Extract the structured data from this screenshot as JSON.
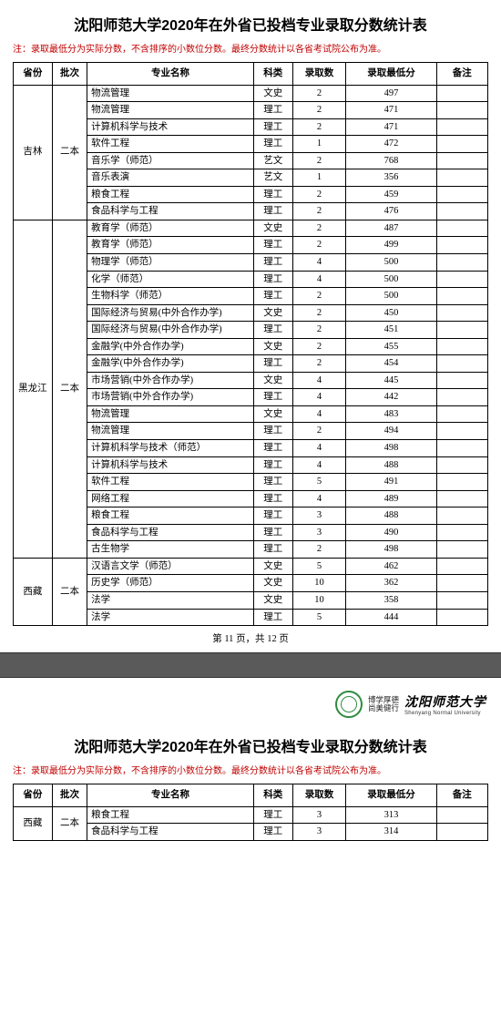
{
  "colors": {
    "note_text": "#c00000",
    "border": "#000000",
    "gap_bg": "#5a5a5a",
    "seal": "#2e8b3f"
  },
  "title": "沈阳师范大学2020年在外省已投档专业录取分数统计表",
  "note": "注：录取最低分为实际分数，不含排序的小数位分数。最终分数统计以各省考试院公布为准。",
  "columns": [
    "省份",
    "批次",
    "专业名称",
    "科类",
    "录取数",
    "录取最低分",
    "备注"
  ],
  "pager": {
    "prefix": "第 ",
    "page": "11",
    "middle": " 页，共 ",
    "total": "12",
    "suffix": " 页"
  },
  "logo": {
    "motto_l1": "博学厚德",
    "motto_l2": "尚美健行",
    "univ_cn": "沈阳师范大学",
    "univ_en": "Shenyang Normal University"
  },
  "page1_groups": [
    {
      "province": "吉林",
      "batch": "二本",
      "rows": [
        {
          "major": "物流管理",
          "subj": "文史",
          "cnt": "2",
          "min": "497",
          "note": ""
        },
        {
          "major": "物流管理",
          "subj": "理工",
          "cnt": "2",
          "min": "471",
          "note": ""
        },
        {
          "major": "计算机科学与技术",
          "subj": "理工",
          "cnt": "2",
          "min": "471",
          "note": ""
        },
        {
          "major": "软件工程",
          "subj": "理工",
          "cnt": "1",
          "min": "472",
          "note": ""
        },
        {
          "major": "音乐学（师范）",
          "subj": "艺文",
          "cnt": "2",
          "min": "768",
          "note": ""
        },
        {
          "major": "音乐表演",
          "subj": "艺文",
          "cnt": "1",
          "min": "356",
          "note": ""
        },
        {
          "major": "粮食工程",
          "subj": "理工",
          "cnt": "2",
          "min": "459",
          "note": ""
        },
        {
          "major": "食品科学与工程",
          "subj": "理工",
          "cnt": "2",
          "min": "476",
          "note": ""
        }
      ]
    },
    {
      "province": "黑龙江",
      "batch": "二本",
      "rows": [
        {
          "major": "教育学（师范）",
          "subj": "文史",
          "cnt": "2",
          "min": "487",
          "note": ""
        },
        {
          "major": "教育学（师范）",
          "subj": "理工",
          "cnt": "2",
          "min": "499",
          "note": ""
        },
        {
          "major": "物理学（师范）",
          "subj": "理工",
          "cnt": "4",
          "min": "500",
          "note": ""
        },
        {
          "major": "化学（师范）",
          "subj": "理工",
          "cnt": "4",
          "min": "500",
          "note": ""
        },
        {
          "major": "生物科学（师范）",
          "subj": "理工",
          "cnt": "2",
          "min": "500",
          "note": ""
        },
        {
          "major": "国际经济与贸易(中外合作办学)",
          "subj": "文史",
          "cnt": "2",
          "min": "450",
          "note": ""
        },
        {
          "major": "国际经济与贸易(中外合作办学)",
          "subj": "理工",
          "cnt": "2",
          "min": "451",
          "note": ""
        },
        {
          "major": "金融学(中外合作办学)",
          "subj": "文史",
          "cnt": "2",
          "min": "455",
          "note": ""
        },
        {
          "major": "金融学(中外合作办学)",
          "subj": "理工",
          "cnt": "2",
          "min": "454",
          "note": ""
        },
        {
          "major": "市场营销(中外合作办学)",
          "subj": "文史",
          "cnt": "4",
          "min": "445",
          "note": ""
        },
        {
          "major": "市场营销(中外合作办学)",
          "subj": "理工",
          "cnt": "4",
          "min": "442",
          "note": ""
        },
        {
          "major": "物流管理",
          "subj": "文史",
          "cnt": "4",
          "min": "483",
          "note": ""
        },
        {
          "major": "物流管理",
          "subj": "理工",
          "cnt": "2",
          "min": "494",
          "note": ""
        },
        {
          "major": "计算机科学与技术（师范）",
          "subj": "理工",
          "cnt": "4",
          "min": "498",
          "note": ""
        },
        {
          "major": "计算机科学与技术",
          "subj": "理工",
          "cnt": "4",
          "min": "488",
          "note": ""
        },
        {
          "major": "软件工程",
          "subj": "理工",
          "cnt": "5",
          "min": "491",
          "note": ""
        },
        {
          "major": "网络工程",
          "subj": "理工",
          "cnt": "4",
          "min": "489",
          "note": ""
        },
        {
          "major": "粮食工程",
          "subj": "理工",
          "cnt": "3",
          "min": "488",
          "note": ""
        },
        {
          "major": "食品科学与工程",
          "subj": "理工",
          "cnt": "3",
          "min": "490",
          "note": ""
        },
        {
          "major": "古生物学",
          "subj": "理工",
          "cnt": "2",
          "min": "498",
          "note": ""
        }
      ]
    },
    {
      "province": "西藏",
      "batch": "二本",
      "rows": [
        {
          "major": "汉语言文学（师范）",
          "subj": "文史",
          "cnt": "5",
          "min": "462",
          "note": ""
        },
        {
          "major": "历史学（师范）",
          "subj": "文史",
          "cnt": "10",
          "min": "362",
          "note": ""
        },
        {
          "major": "法学",
          "subj": "文史",
          "cnt": "10",
          "min": "358",
          "note": ""
        },
        {
          "major": "法学",
          "subj": "理工",
          "cnt": "5",
          "min": "444",
          "note": ""
        }
      ]
    }
  ],
  "page2_groups": [
    {
      "province": "西藏",
      "batch": "二本",
      "rows": [
        {
          "major": "粮食工程",
          "subj": "理工",
          "cnt": "3",
          "min": "313",
          "note": ""
        },
        {
          "major": "食品科学与工程",
          "subj": "理工",
          "cnt": "3",
          "min": "314",
          "note": ""
        }
      ]
    }
  ]
}
